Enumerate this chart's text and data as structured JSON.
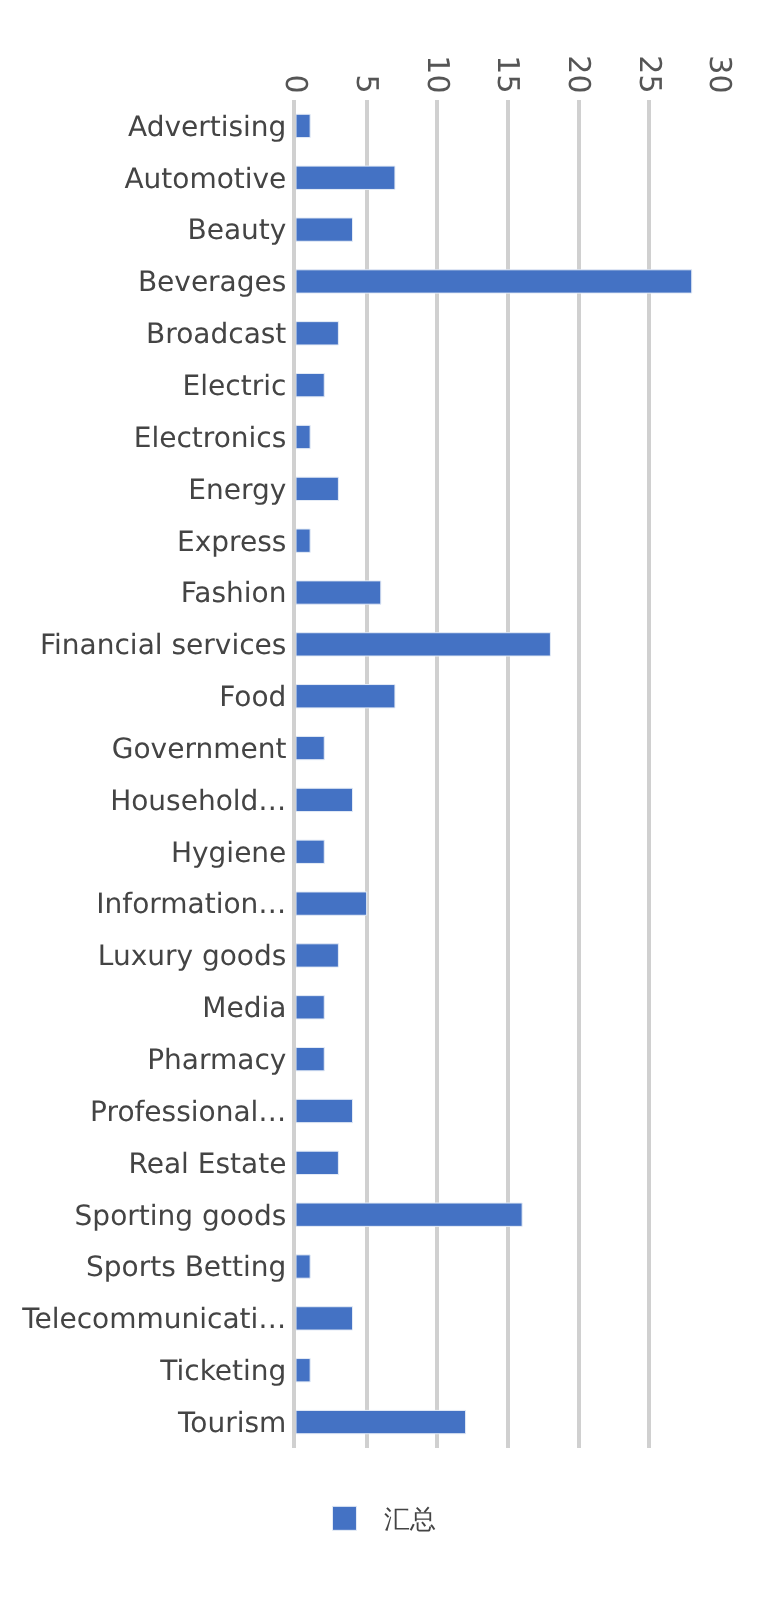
{
  "chart_data": {
    "type": "bar",
    "orientation": "horizontal",
    "categories": [
      "Advertising",
      "Automotive",
      "Beauty",
      "Beverages",
      "Broadcast",
      "Electric",
      "Electronics",
      "Energy",
      "Express",
      "Fashion",
      "Financial services",
      "Food",
      "Government",
      "Household…",
      "Hygiene",
      "Information…",
      "Luxury goods",
      "Media",
      "Pharmacy",
      "Professional…",
      "Real Estate",
      "Sporting goods",
      "Sports Betting",
      "Telecommunicati…",
      "Ticketing",
      "Tourism"
    ],
    "series": [
      {
        "name": "汇总",
        "color": "#4472c4",
        "values": [
          1,
          7,
          4,
          28,
          3,
          2,
          1,
          3,
          1,
          6,
          18,
          7,
          2,
          4,
          2,
          5,
          3,
          2,
          2,
          4,
          3,
          16,
          1,
          4,
          1,
          12
        ]
      }
    ],
    "xlim": [
      0,
      30
    ],
    "xticks": [
      0,
      5,
      10,
      15,
      20,
      25,
      30
    ],
    "grid": "x",
    "legend": "bottom"
  }
}
